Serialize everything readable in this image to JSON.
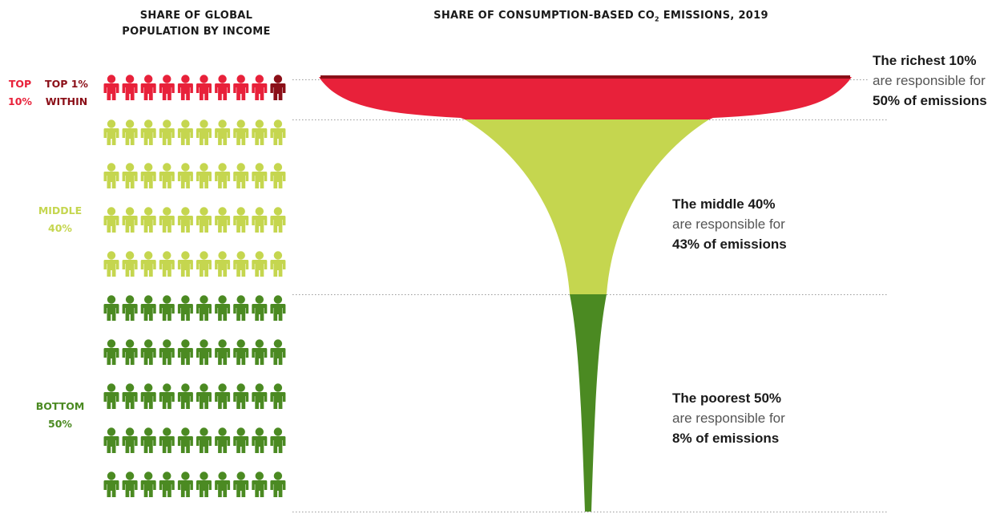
{
  "colors": {
    "top": "#e8213a",
    "top1": "#8b0f18",
    "middle": "#c5d64f",
    "bottom": "#4b8a22",
    "divider": "#9a9a9a",
    "text": "#1a1a1a"
  },
  "left_title": [
    "SHARE OF GLOBAL",
    "POPULATION BY INCOME"
  ],
  "right_title": {
    "main": "SHARE OF CONSUMPTION-BASED CO",
    "sub": "2",
    "tail": " EMISSIONS, 2019"
  },
  "groups": {
    "top": {
      "line1": "TOP",
      "line2": "10%"
    },
    "top1": {
      "line1": "TOP 1%",
      "line2": "WITHIN"
    },
    "middle": {
      "line1": "MIDDLE",
      "line2": "40%"
    },
    "bottom": {
      "line1": "BOTTOM",
      "line2": "50%"
    }
  },
  "annotations": [
    {
      "line1": "The richest 10%",
      "line2": "are responsible for",
      "line3": "50% of emissions"
    },
    {
      "line1": "The middle 40%",
      "line2": "are responsible for",
      "line3": "43% of emissions"
    },
    {
      "line1": "The poorest 50%",
      "line2": "are responsible for",
      "line3": "8% of emissions"
    }
  ],
  "chart_data": {
    "type": "funnel",
    "title": "SHARE OF CONSUMPTION-BASED CO2 EMISSIONS, 2019",
    "categories": [
      "Top 10%",
      "Middle 40%",
      "Bottom 50%"
    ],
    "population_share_pct": [
      10,
      40,
      50
    ],
    "emissions_share_pct": [
      50,
      43,
      8
    ],
    "icon_grid": {
      "rows": 10,
      "cols": 10,
      "rows_per_group": [
        1,
        4,
        5
      ],
      "top1_icons": 1
    }
  }
}
